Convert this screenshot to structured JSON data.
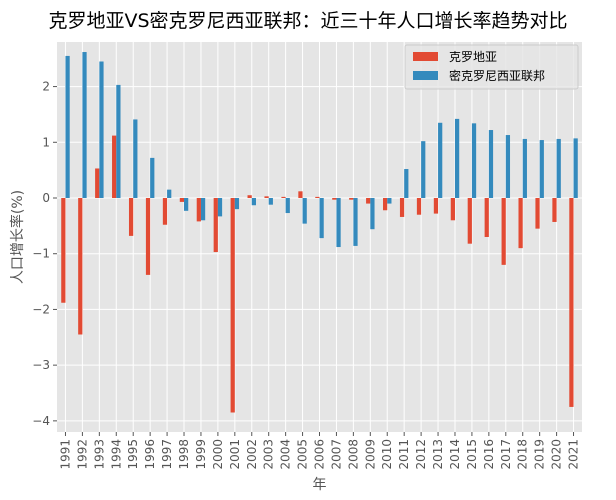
{
  "chart_data": {
    "type": "bar",
    "title": "克罗地亚VS密克罗尼西亚联邦：近三十年人口增长率趋势对比",
    "xlabel": "年",
    "ylabel": "人口增长率(%)",
    "categories": [
      "1991",
      "1992",
      "1993",
      "1994",
      "1995",
      "1996",
      "1997",
      "1998",
      "1999",
      "2000",
      "2001",
      "2002",
      "2003",
      "2004",
      "2005",
      "2006",
      "2007",
      "2008",
      "2009",
      "2010",
      "2011",
      "2012",
      "2013",
      "2014",
      "2015",
      "2016",
      "2017",
      "2018",
      "2019",
      "2020",
      "2021"
    ],
    "ylim": [
      -4.2,
      2.8
    ],
    "yticks": [
      -4,
      -3,
      -2,
      -1,
      0,
      1,
      2
    ],
    "ytick_labels": [
      "−4",
      "−3",
      "−2",
      "−1",
      "0",
      "1",
      "2"
    ],
    "grid": true,
    "legend_position": "top-right",
    "series": [
      {
        "name": "克罗地亚",
        "color": "#E24A33",
        "values": [
          -1.88,
          -2.45,
          0.53,
          1.12,
          -0.68,
          -1.38,
          -0.48,
          -0.07,
          -0.42,
          -0.97,
          -3.85,
          0.05,
          0.03,
          0.02,
          0.12,
          0.02,
          -0.03,
          -0.03,
          -0.1,
          -0.22,
          -0.34,
          -0.3,
          -0.28,
          -0.4,
          -0.82,
          -0.7,
          -1.2,
          -0.9,
          -0.55,
          -0.43,
          -3.75
        ]
      },
      {
        "name": "密克罗尼西亚联邦",
        "color": "#348ABD",
        "values": [
          2.55,
          2.62,
          2.45,
          2.03,
          1.41,
          0.72,
          0.15,
          -0.23,
          -0.4,
          -0.33,
          -0.2,
          -0.13,
          -0.12,
          -0.27,
          -0.46,
          -0.72,
          -0.88,
          -0.86,
          -0.56,
          -0.1,
          0.52,
          1.02,
          1.35,
          1.42,
          1.34,
          1.22,
          1.13,
          1.06,
          1.04,
          1.06,
          1.07
        ]
      }
    ]
  }
}
